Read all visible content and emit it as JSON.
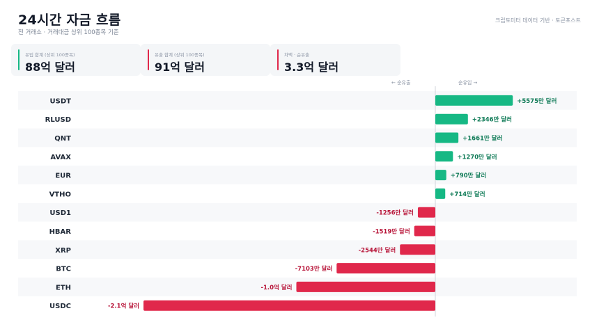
{
  "title": "24시간 자금 흐름",
  "subtitle": "전 거래소 · 거래대금 상위 100종목 기준",
  "source": "크립토미터 데이터 기반 · 토큰포스트",
  "cards": [
    {
      "label": "유입 합계 (상위 100종목)",
      "value": "88억 달러",
      "color": "#16b884"
    },
    {
      "label": "유출 합계 (상위 100종목)",
      "value": "91억 달러",
      "color": "#e0284b"
    },
    {
      "label": "차액 · 순유출",
      "value": "3.3억 달러",
      "color": "#e0284b"
    }
  ],
  "direction_labels": {
    "outflow": "← 순유출",
    "inflow": "순유입 →"
  },
  "colors": {
    "inflow": "#16b884",
    "outflow": "#e0284b",
    "inflow_text": "#0e7a56",
    "outflow_text": "#b8163a",
    "row_alt": "#f7f8fa"
  },
  "chart_data": {
    "type": "bar",
    "orientation": "horizontal",
    "unit": "만 달러",
    "categories": [
      "USDT",
      "RLUSD",
      "QNT",
      "AVAX",
      "EUR",
      "VTHO",
      "USD1",
      "HBAR",
      "XRP",
      "BTC",
      "ETH",
      "USDC"
    ],
    "values": [
      5575,
      2346,
      1661,
      1270,
      790,
      714,
      -1256,
      -1519,
      -2544,
      -7103,
      -10000,
      -21000
    ],
    "data_labels": [
      "+5575만 달러",
      "+2346만 달러",
      "+1661만 달러",
      "+1270만 달러",
      "+790만 달러",
      "+714만 달러",
      "-1256만 달러",
      "-1519만 달러",
      "-2544만 달러",
      "-7103만 달러",
      "-1.0억 달러",
      "-2.1억 달러"
    ],
    "xlim": [
      -21000,
      10200
    ],
    "grid": false,
    "legend": "none"
  }
}
